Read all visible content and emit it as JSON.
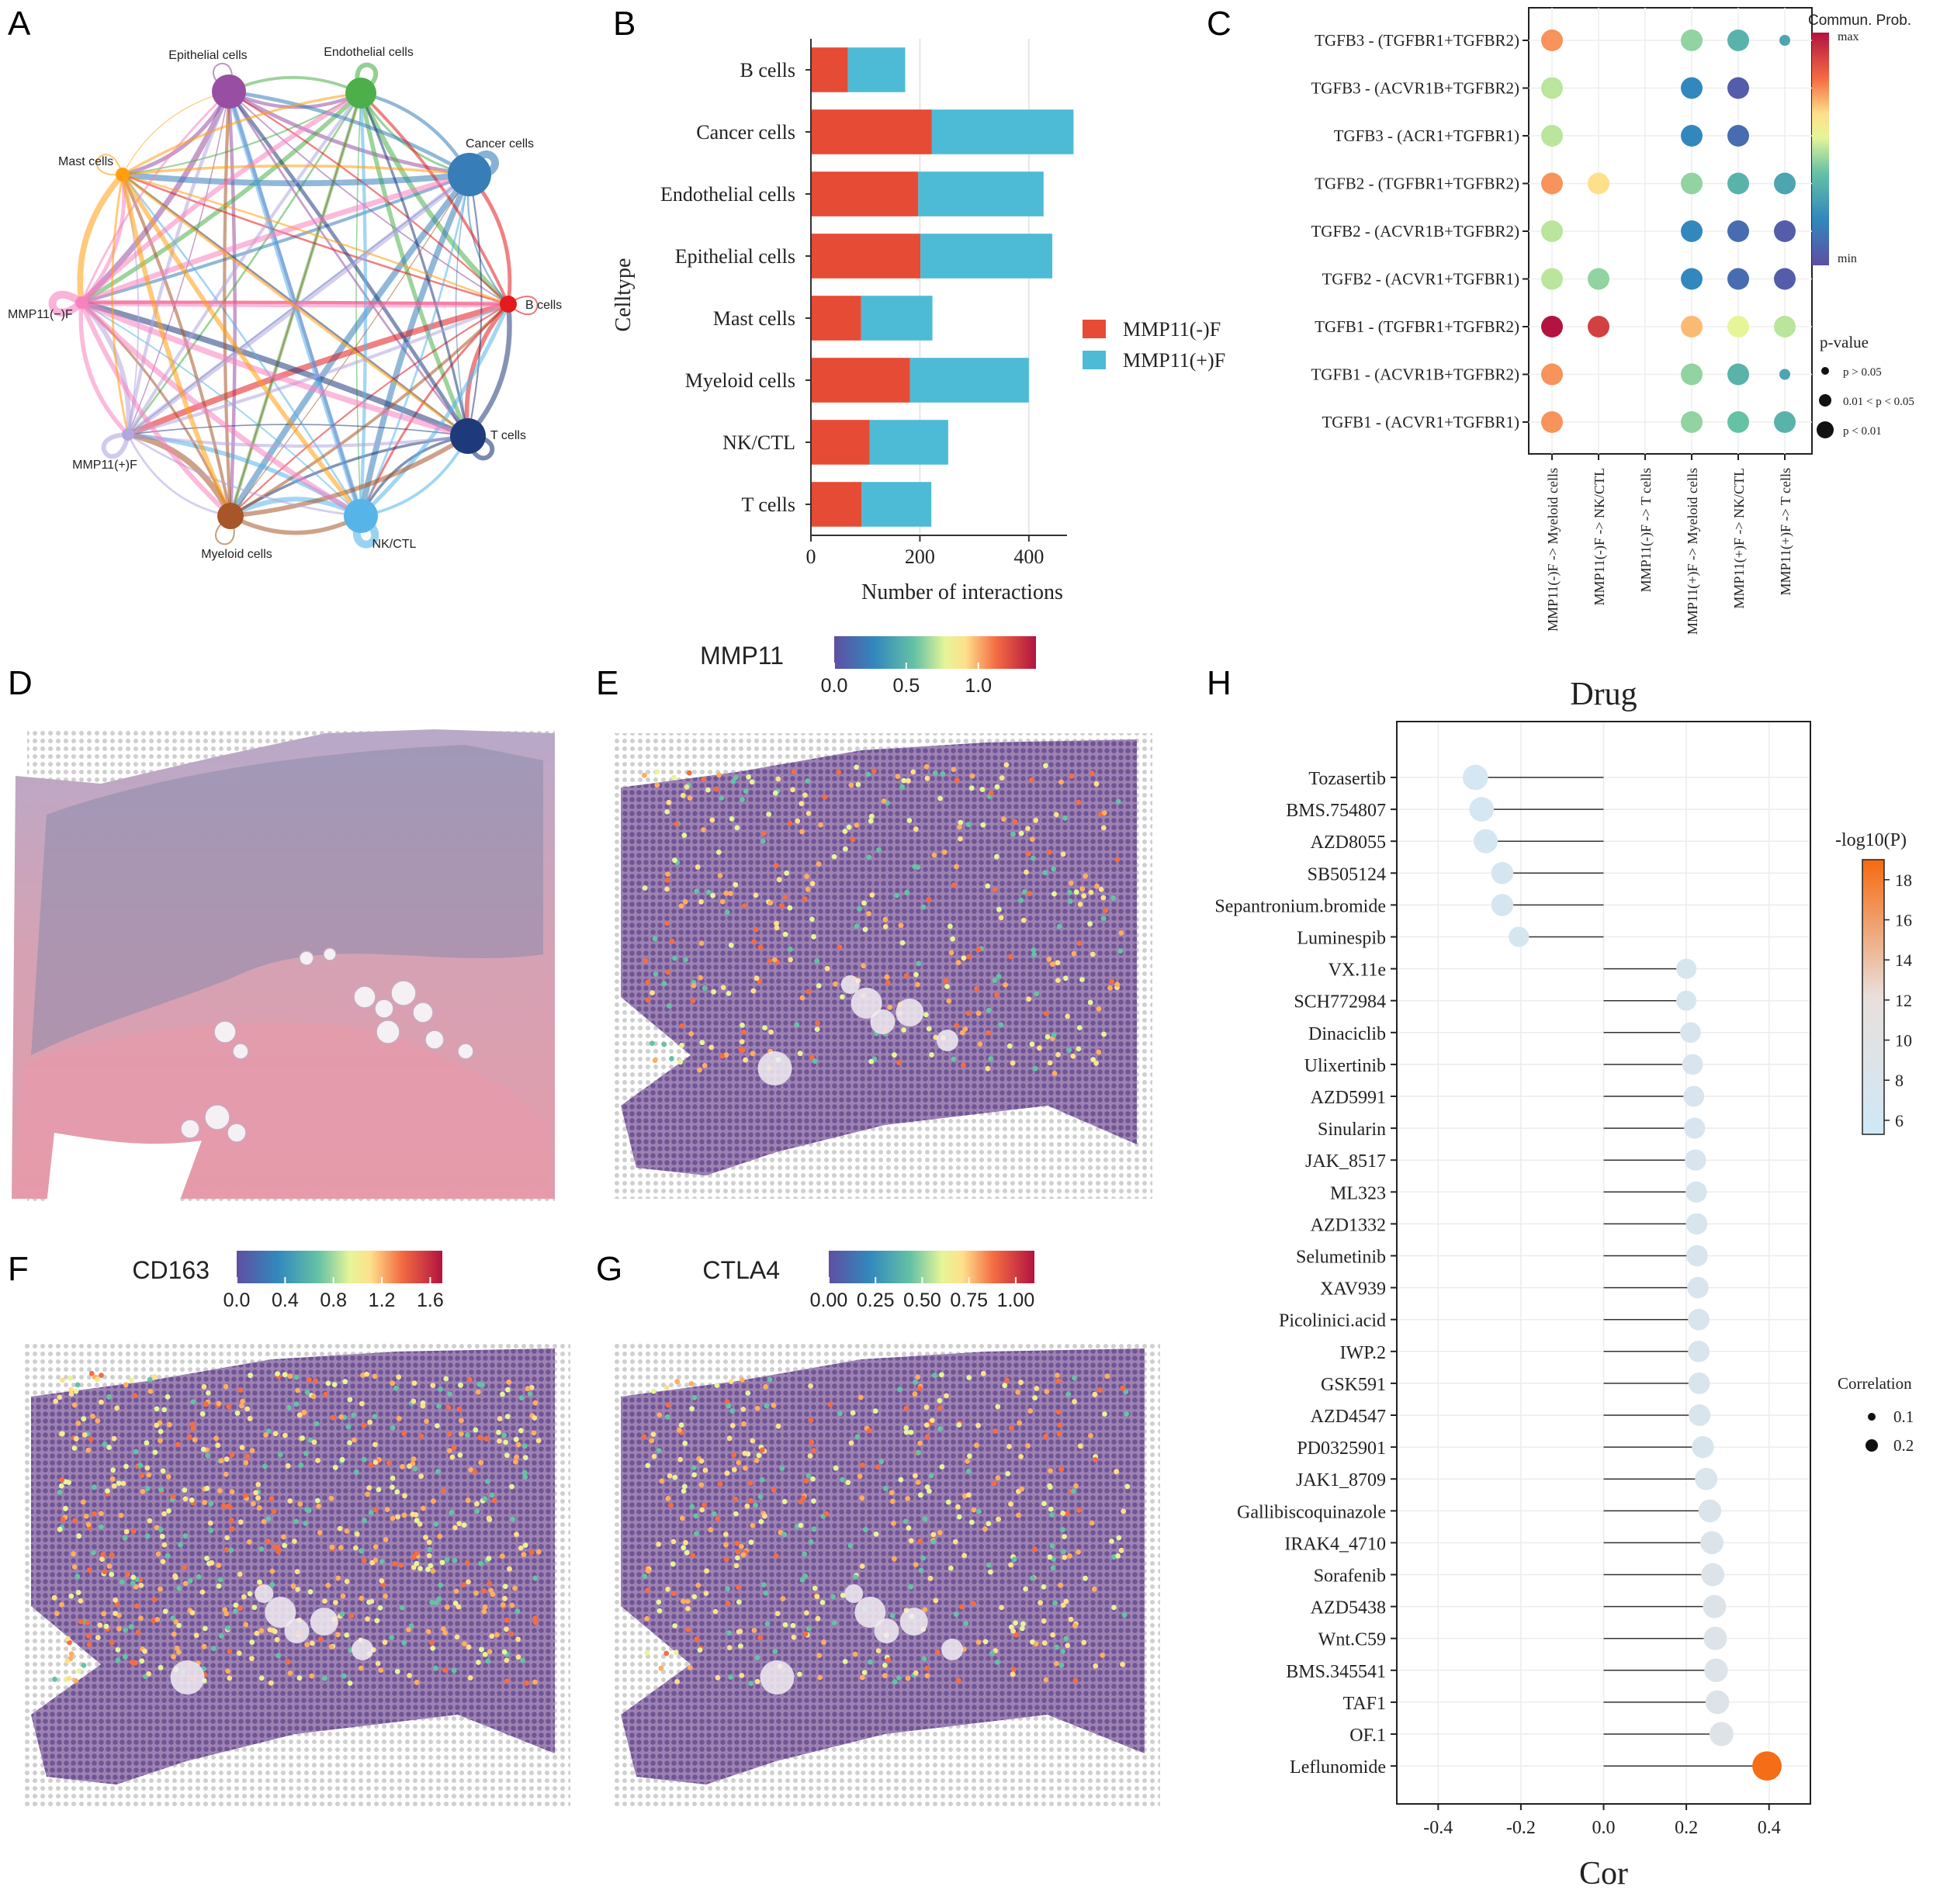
{
  "colors": {
    "neg": "#E64B35",
    "pos": "#4DBBD5",
    "grid": "#e6e6e6",
    "tissue_pink": "#d99aa8",
    "tissue_spot": "#5b4a8c"
  },
  "panel_letters": [
    "A",
    "B",
    "C",
    "D",
    "E",
    "F",
    "G",
    "H"
  ],
  "panelA": {
    "nodes": [
      {
        "label": "Epithelial cells",
        "color": "#984EA3"
      },
      {
        "label": "Endothelial cells",
        "color": "#4DAF4A"
      },
      {
        "label": "Cancer cells",
        "color": "#377EB8"
      },
      {
        "label": "B cells",
        "color": "#E41A1C"
      },
      {
        "label": "T cells",
        "color": "#1F3A7A"
      },
      {
        "label": "NK/CTL",
        "color": "#56B4E9"
      },
      {
        "label": "Myeloid cells",
        "color": "#A65628"
      },
      {
        "label": "MMP11(+)F",
        "color": "#B3A6DF"
      },
      {
        "label": "MMP11(−)F",
        "color": "#F781BF"
      },
      {
        "label": "Mast cells",
        "color": "#FF9F10"
      }
    ]
  },
  "chart_data": [
    {
      "type": "bar",
      "panel": "B",
      "orientation": "horizontal-stacked",
      "categories": [
        "B cells",
        "Cancer cells",
        "Endothelial cells",
        "Epithelial cells",
        "Mast cells",
        "Myeloid cells",
        "NK/CTL",
        "T cells"
      ],
      "series": [
        {
          "name": "MMP11(-)F",
          "values": [
            68,
            222,
            197,
            201,
            92,
            182,
            108,
            93
          ]
        },
        {
          "name": "MMP11(+)F",
          "values": [
            105,
            260,
            230,
            242,
            131,
            218,
            144,
            128
          ]
        }
      ],
      "xlabel": "Number of interactions",
      "ylabel": "Celltype",
      "xticks": [
        0,
        200,
        400
      ],
      "xlim": [
        0,
        470
      ]
    },
    {
      "type": "scatter",
      "panel": "C",
      "subtype": "dotplot",
      "rows": [
        "TGFB3 - (TGFBR1+TGFBR2)",
        "TGFB3 - (ACVR1B+TGFBR2)",
        "TGFB3 - (ACR1+TGFBR1)",
        "TGFB2 - (TGFBR1+TGFBR2)",
        "TGFB2 - (ACVR1B+TGFBR2)",
        "TGFB2 - (ACVR1+TGFBR1)",
        "TGFB1 - (TGFBR1+TGFBR2)",
        "TGFB1 - (ACVR1B+TGFBR2)",
        "TGFB1 - (ACVR1+TGFBR1)"
      ],
      "columns": [
        "MMP11(-)F -> Myeloid cells",
        "MMP11(-)F -> NK/CTL",
        "MMP11(-)F -> T cells",
        "MMP11(+)F -> Myeloid cells",
        "MMP11(+)F -> NK/CTL",
        "MMP11(+)F -> T cells"
      ],
      "points": [
        {
          "row": 0,
          "col": 0,
          "prob": 0.75,
          "p": 2
        },
        {
          "row": 0,
          "col": 3,
          "prob": 0.45,
          "p": 2
        },
        {
          "row": 0,
          "col": 4,
          "prob": 0.35,
          "p": 2
        },
        {
          "row": 0,
          "col": 5,
          "prob": 0.3,
          "p": 0
        },
        {
          "row": 1,
          "col": 0,
          "prob": 0.5,
          "p": 2
        },
        {
          "row": 1,
          "col": 3,
          "prob": 0.2,
          "p": 2
        },
        {
          "row": 1,
          "col": 4,
          "prob": 0.05,
          "p": 2
        },
        {
          "row": 2,
          "col": 0,
          "prob": 0.5,
          "p": 2
        },
        {
          "row": 2,
          "col": 3,
          "prob": 0.2,
          "p": 2
        },
        {
          "row": 2,
          "col": 4,
          "prob": 0.1,
          "p": 2
        },
        {
          "row": 3,
          "col": 0,
          "prob": 0.75,
          "p": 2
        },
        {
          "row": 3,
          "col": 1,
          "prob": 0.65,
          "p": 2
        },
        {
          "row": 3,
          "col": 3,
          "prob": 0.45,
          "p": 2
        },
        {
          "row": 3,
          "col": 4,
          "prob": 0.35,
          "p": 2
        },
        {
          "row": 3,
          "col": 5,
          "prob": 0.3,
          "p": 2
        },
        {
          "row": 4,
          "col": 0,
          "prob": 0.5,
          "p": 2
        },
        {
          "row": 4,
          "col": 3,
          "prob": 0.2,
          "p": 2
        },
        {
          "row": 4,
          "col": 4,
          "prob": 0.1,
          "p": 2
        },
        {
          "row": 4,
          "col": 5,
          "prob": 0.05,
          "p": 2
        },
        {
          "row": 5,
          "col": 0,
          "prob": 0.5,
          "p": 2
        },
        {
          "row": 5,
          "col": 1,
          "prob": 0.45,
          "p": 2
        },
        {
          "row": 5,
          "col": 3,
          "prob": 0.2,
          "p": 2
        },
        {
          "row": 5,
          "col": 4,
          "prob": 0.1,
          "p": 2
        },
        {
          "row": 5,
          "col": 5,
          "prob": 0.05,
          "p": 2
        },
        {
          "row": 6,
          "col": 0,
          "prob": 1.0,
          "p": 2
        },
        {
          "row": 6,
          "col": 1,
          "prob": 0.9,
          "p": 2
        },
        {
          "row": 6,
          "col": 3,
          "prob": 0.7,
          "p": 2
        },
        {
          "row": 6,
          "col": 4,
          "prob": 0.55,
          "p": 2
        },
        {
          "row": 6,
          "col": 5,
          "prob": 0.5,
          "p": 2
        },
        {
          "row": 7,
          "col": 0,
          "prob": 0.75,
          "p": 2
        },
        {
          "row": 7,
          "col": 3,
          "prob": 0.45,
          "p": 2
        },
        {
          "row": 7,
          "col": 4,
          "prob": 0.35,
          "p": 2
        },
        {
          "row": 7,
          "col": 5,
          "prob": 0.3,
          "p": 0
        },
        {
          "row": 8,
          "col": 0,
          "prob": 0.75,
          "p": 2
        },
        {
          "row": 8,
          "col": 3,
          "prob": 0.45,
          "p": 2
        },
        {
          "row": 8,
          "col": 4,
          "prob": 0.4,
          "p": 2
        },
        {
          "row": 8,
          "col": 5,
          "prob": 0.35,
          "p": 2
        }
      ],
      "color_legend": {
        "title": "Commun. Prob.",
        "max_label": "max",
        "min_label": "min"
      },
      "size_legend": {
        "title": "p-value",
        "items": [
          "p > 0.05",
          "0.01 < p < 0.05",
          "p < 0.01"
        ]
      }
    },
    {
      "type": "scatter",
      "panel": "H",
      "subtype": "lollipop",
      "title": "Drug",
      "xlabel": "Cor",
      "xlim": [
        -0.5,
        0.5
      ],
      "xticks": [
        -0.4,
        -0.2,
        0.0,
        0.2,
        0.4
      ],
      "xtick_labels": [
        "-0.4",
        "-0.2",
        "0.0",
        "0.2",
        "0.4"
      ],
      "drugs": [
        "Tozasertib",
        "BMS.754807",
        "AZD8055",
        "SB505124",
        "Sepantronium.bromide",
        "Luminespib",
        "VX.11e",
        "SCH772984",
        "Dinaciclib",
        "Ulixertinib",
        "AZD5991",
        "Sinularin",
        "JAK_8517",
        "ML323",
        "AZD1332",
        "Selumetinib",
        "XAV939",
        "Picolinici.acid",
        "IWP.2",
        "GSK591",
        "AZD4547",
        "PD0325901",
        "JAK1_8709",
        "Gallibiscoquinazole",
        "IRAK4_4710",
        "Sorafenib",
        "AZD5438",
        "Wnt.C59",
        "BMS.345541",
        "TAF1",
        "OF.1",
        "Leflunomide"
      ],
      "cor": [
        -0.31,
        -0.295,
        -0.285,
        -0.245,
        -0.245,
        -0.205,
        0.2,
        0.2,
        0.21,
        0.215,
        0.218,
        0.22,
        0.222,
        0.224,
        0.225,
        0.226,
        0.228,
        0.23,
        0.23,
        0.231,
        0.232,
        0.24,
        0.248,
        0.257,
        0.262,
        0.264,
        0.268,
        0.27,
        0.272,
        0.275,
        0.285,
        0.395
      ],
      "neglog10p": [
        6.5,
        6.5,
        6.6,
        6.8,
        6.8,
        7.0,
        7.5,
        7.5,
        7.6,
        7.6,
        7.7,
        7.7,
        7.7,
        7.8,
        7.8,
        7.8,
        7.8,
        7.9,
        7.9,
        7.9,
        7.9,
        8.0,
        8.2,
        8.4,
        8.6,
        8.6,
        8.7,
        8.8,
        8.8,
        8.9,
        9.2,
        18.8
      ],
      "color_legend": {
        "title": "-log10(P)",
        "ticks": [
          6,
          8,
          10,
          12,
          14,
          16,
          18
        ],
        "range": [
          5.3,
          19
        ]
      },
      "size_legend": {
        "title": "Correlation",
        "items": [
          "0.1",
          "0.2"
        ]
      }
    }
  ],
  "spatial": {
    "E": {
      "gene": "MMP11",
      "ticks": [
        "0.0",
        "0.5",
        "1.0"
      ],
      "max": 1.4
    },
    "F": {
      "gene": "CD163",
      "ticks": [
        "0.0",
        "0.4",
        "0.8",
        "1.2",
        "1.6"
      ],
      "max": 1.7
    },
    "G": {
      "gene": "CTLA4",
      "ticks": [
        "0.00",
        "0.25",
        "0.50",
        "0.75",
        "1.00"
      ],
      "max": 1.1
    }
  }
}
